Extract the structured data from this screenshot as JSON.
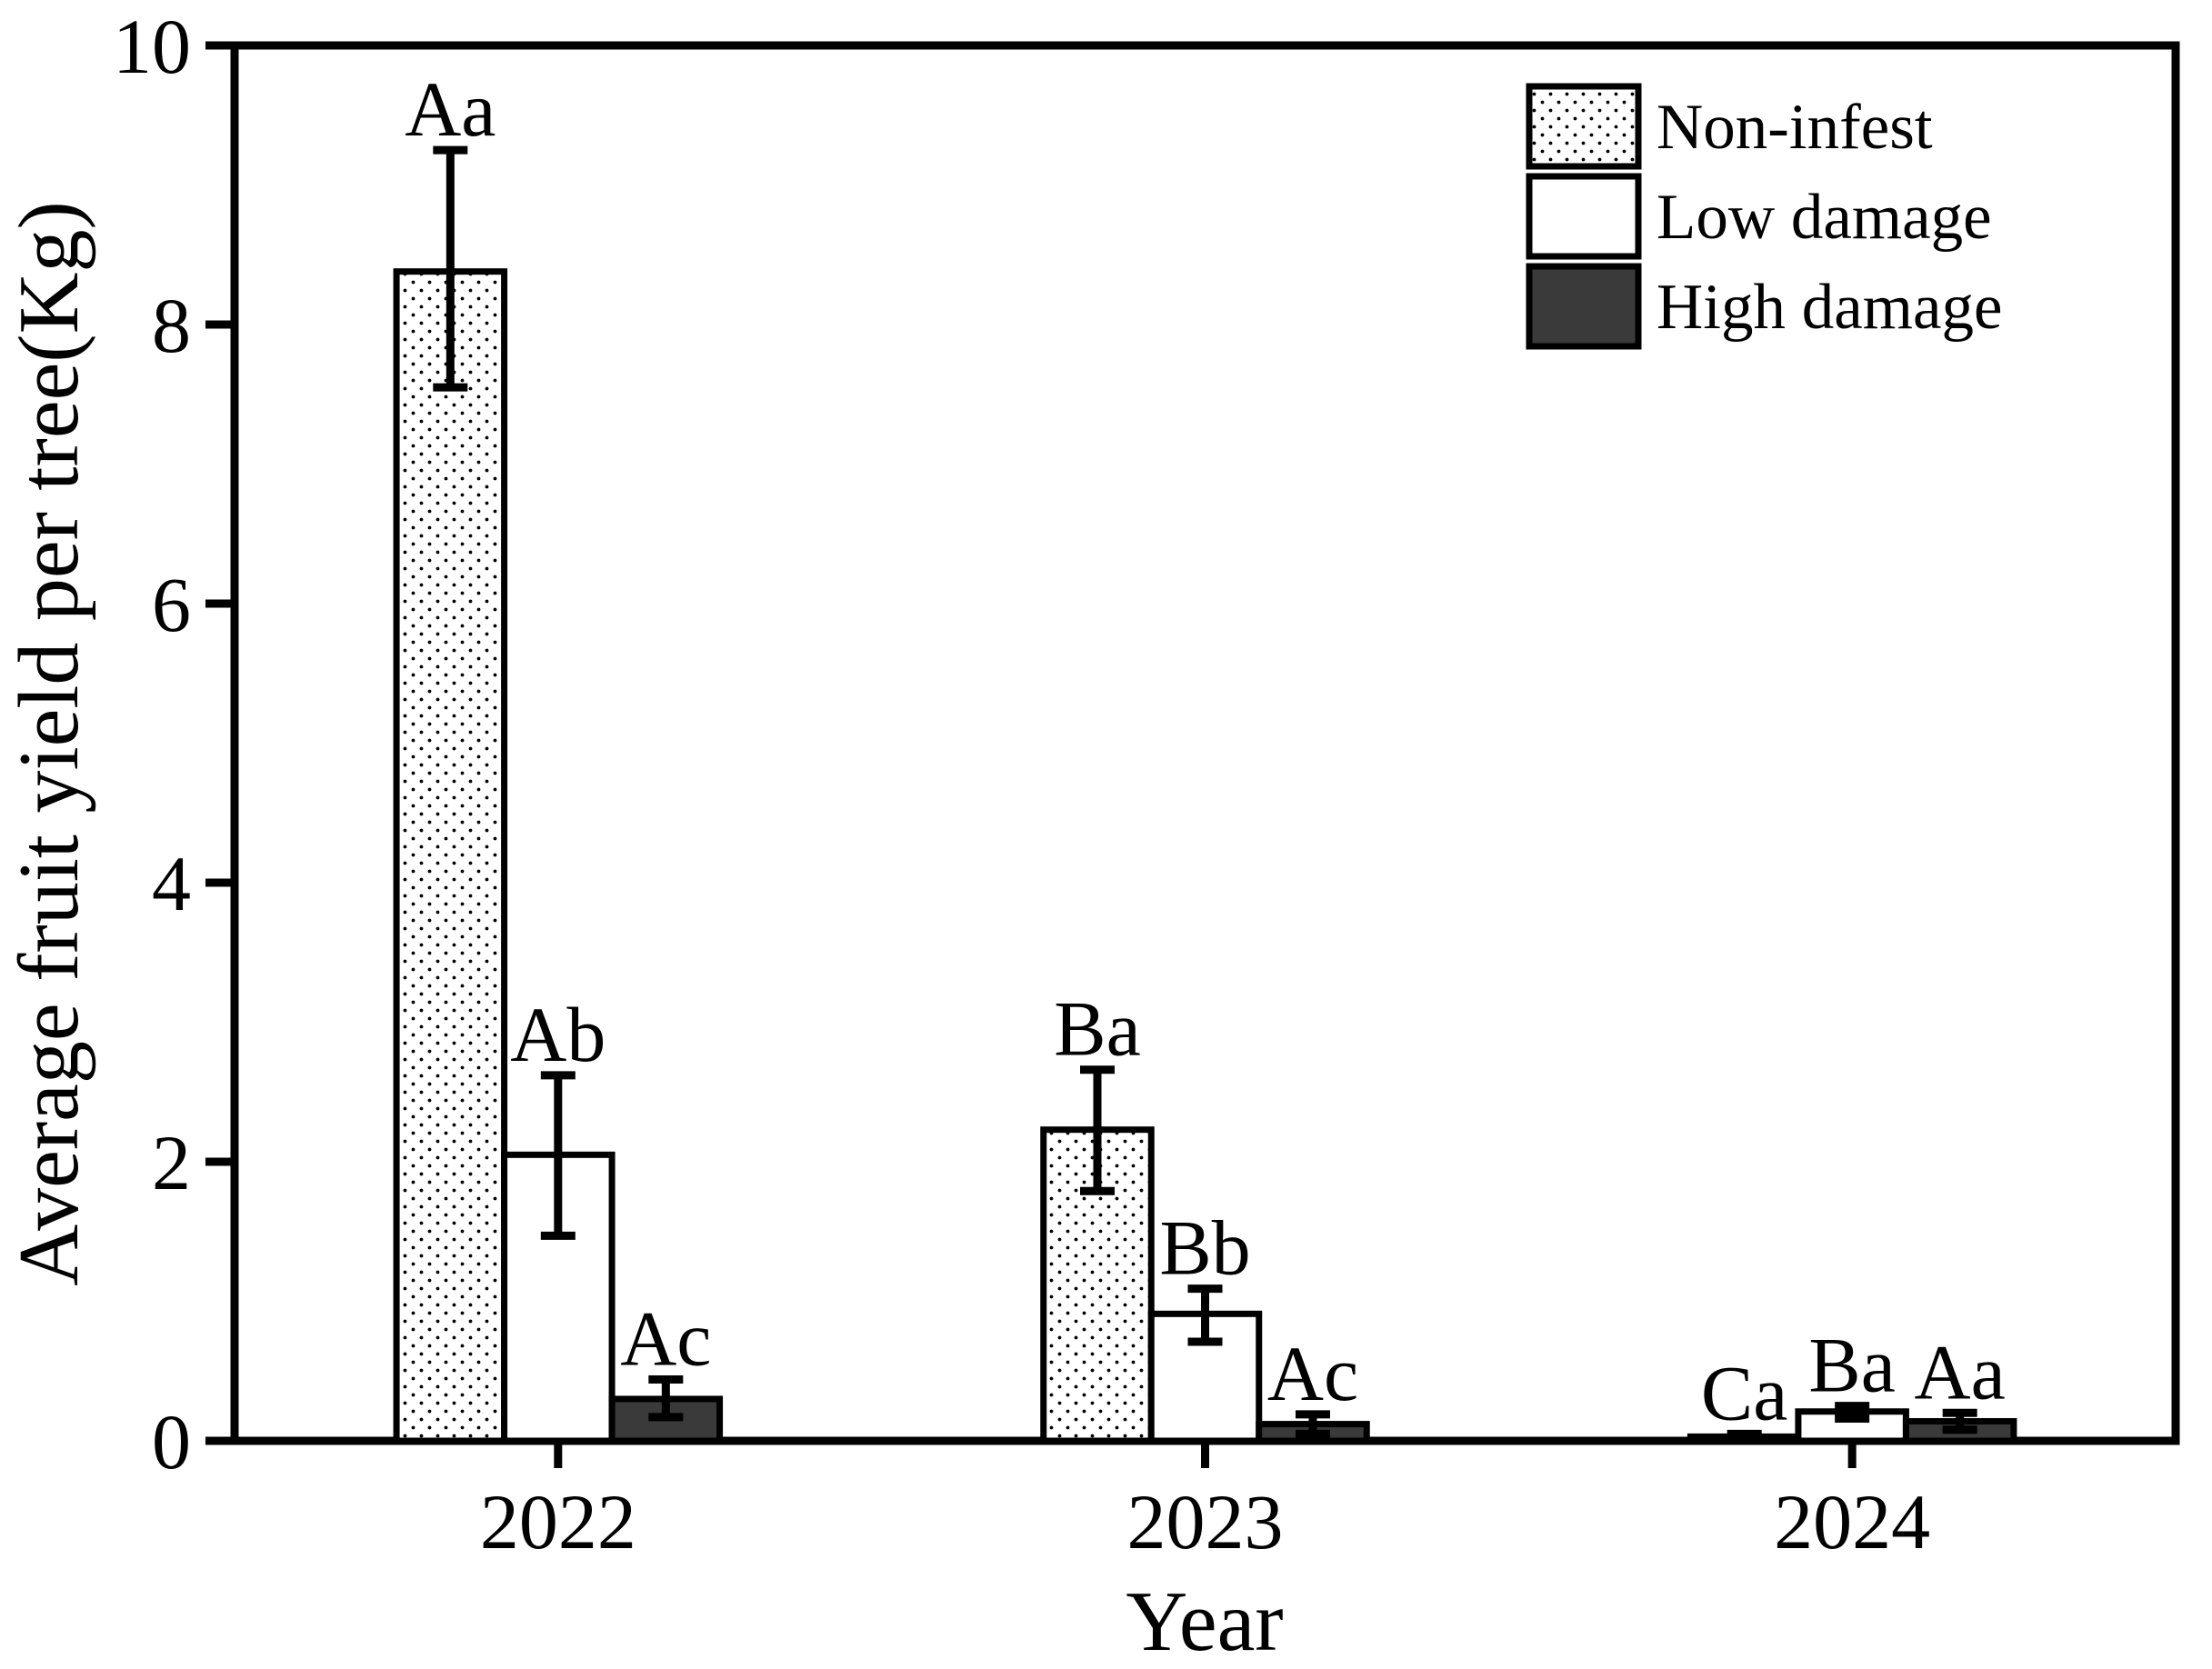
{
  "chart_data": {
    "type": "bar",
    "title": "",
    "xlabel": "Year",
    "ylabel": "Average fruit yield per tree(Kg)",
    "categories": [
      "2022",
      "2023",
      "2024"
    ],
    "ylim": [
      0,
      10
    ],
    "yticks": [
      0,
      2,
      4,
      6,
      8,
      10
    ],
    "grid": false,
    "legend_position": "top-right",
    "error_bars": "absolute_cap_values",
    "series": [
      {
        "name": "Non-infest",
        "fill": "dots",
        "values": [
          8.38,
          2.23,
          0.03
        ],
        "err_upper": [
          9.25,
          2.66,
          0.05
        ],
        "err_lower": [
          7.55,
          1.79,
          0.01
        ],
        "sig_labels": [
          "Aa",
          "Ba",
          "Ca"
        ]
      },
      {
        "name": "Low damage",
        "fill": "white",
        "values": [
          2.05,
          0.91,
          0.21
        ],
        "err_upper": [
          2.62,
          1.09,
          0.25
        ],
        "err_lower": [
          1.47,
          0.71,
          0.16
        ],
        "sig_labels": [
          "Ab",
          "Bb",
          "Ba"
        ]
      },
      {
        "name": "High damage",
        "fill": "darkgray",
        "values": [
          0.3,
          0.12,
          0.14
        ],
        "err_upper": [
          0.44,
          0.19,
          0.2
        ],
        "err_lower": [
          0.17,
          0.05,
          0.08
        ],
        "sig_labels": [
          "Ac",
          "Ac",
          "Aa"
        ]
      }
    ]
  },
  "colors": {
    "ink": "#000000",
    "dark_bar": "#3a3a3a",
    "background": "#ffffff"
  }
}
